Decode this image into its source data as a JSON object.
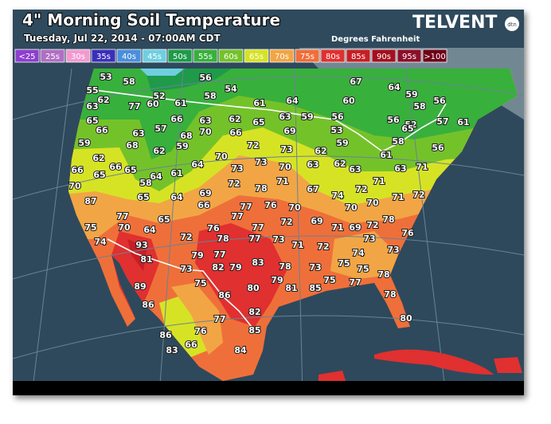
{
  "header": {
    "title": "4\" Morning Soil Temperature",
    "subtitle": "Tuesday, Jul 22, 2014 - 07:00AM CDT",
    "units": "Degrees Fahrenheit",
    "logo": "TELVENT",
    "logo_badge": "dtn"
  },
  "legend": [
    {
      "label": "<25",
      "color": "#8d3fcf"
    },
    {
      "label": "25s",
      "color": "#b06fc4"
    },
    {
      "label": "30s",
      "color": "#f29ad0"
    },
    {
      "label": "35s",
      "color": "#3a2fb8"
    },
    {
      "label": "40s",
      "color": "#4a8fdc"
    },
    {
      "label": "45s",
      "color": "#6fcfe0"
    },
    {
      "label": "50s",
      "color": "#1f9a4a"
    },
    {
      "label": "55s",
      "color": "#38b03c"
    },
    {
      "label": "60s",
      "color": "#74c22a"
    },
    {
      "label": "65s",
      "color": "#d6e325"
    },
    {
      "label": "70s",
      "color": "#f2a545"
    },
    {
      "label": "75s",
      "color": "#ef6f3a"
    },
    {
      "label": "80s",
      "color": "#e03030"
    },
    {
      "label": "85s",
      "color": "#c61f25"
    },
    {
      "label": "90s",
      "color": "#a31020"
    },
    {
      "label": "95s",
      "color": "#8c0f2a"
    },
    {
      "label": ">100",
      "color": "#6e0018"
    }
  ],
  "stations": [
    53,
    58,
    56,
    54,
    67,
    64,
    59,
    55,
    62,
    52,
    60,
    61,
    58,
    61,
    64,
    60,
    56,
    58,
    63,
    77,
    65,
    66,
    66,
    63,
    62,
    65,
    63,
    59,
    56,
    56,
    52,
    57,
    61,
    63,
    57,
    68,
    70,
    66,
    72,
    69,
    53,
    65,
    59,
    68,
    62,
    59,
    73,
    62,
    59,
    58,
    56,
    62,
    66,
    65,
    66,
    65,
    64,
    61,
    64,
    70,
    73,
    73,
    70,
    63,
    62,
    63,
    61,
    63,
    71,
    70,
    58,
    69,
    72,
    78,
    71,
    67,
    74,
    72,
    71,
    71,
    72,
    87,
    65,
    64,
    66,
    77,
    76,
    70,
    69,
    70,
    70,
    77,
    65,
    77,
    72,
    78,
    75,
    70,
    64,
    76,
    77,
    71,
    69,
    72,
    93,
    72,
    78,
    77,
    73,
    71,
    73,
    76,
    74,
    81,
    79,
    77,
    79,
    83,
    72,
    73,
    73,
    78,
    73,
    75,
    74,
    75,
    78,
    89,
    75,
    82,
    80,
    79,
    81,
    75,
    77,
    85,
    78,
    86,
    86,
    82,
    77,
    80,
    76,
    85,
    86,
    83,
    66,
    84
  ]
}
